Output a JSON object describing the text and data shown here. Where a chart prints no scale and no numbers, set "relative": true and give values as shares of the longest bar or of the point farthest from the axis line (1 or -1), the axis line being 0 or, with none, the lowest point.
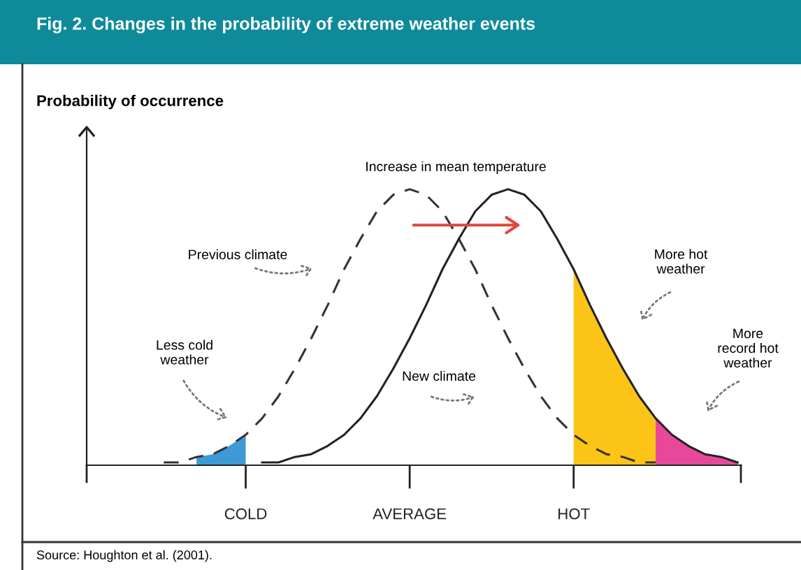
{
  "chart_data": {
    "type": "line",
    "title": "Fig. 2. Changes in the probability of extreme weather events",
    "relative": true,
    "categories": [
      null,
      null,
      null,
      null,
      null,
      null,
      null,
      null,
      null,
      "COLD",
      null,
      null,
      null,
      null,
      null,
      null,
      null,
      null,
      null,
      "AVERAGE",
      null,
      null,
      null,
      null,
      null,
      null,
      null,
      null,
      null,
      "HOT",
      null,
      null,
      null,
      null,
      null,
      null,
      null,
      null,
      null,
      null
    ],
    "grid": false,
    "legend": false,
    "series": [
      {
        "type": "area",
        "color": "#3d9ad6",
        "values": [
          null,
          null,
          null,
          null,
          null,
          null,
          0.03,
          0.04,
          0.07,
          0.11,
          null,
          null,
          null,
          null,
          null,
          null,
          null,
          null,
          null,
          null,
          null,
          null,
          null,
          null,
          null,
          null,
          null,
          null,
          null,
          null,
          null,
          null,
          null,
          null,
          null,
          null,
          null,
          null,
          null,
          null
        ]
      },
      {
        "type": "area",
        "color": "#fbc417",
        "values": [
          null,
          null,
          null,
          null,
          null,
          null,
          null,
          null,
          null,
          null,
          null,
          null,
          null,
          null,
          null,
          null,
          null,
          null,
          null,
          null,
          null,
          null,
          null,
          null,
          null,
          null,
          null,
          null,
          null,
          0.71,
          0.58,
          0.46,
          0.35,
          0.25,
          0.17,
          null,
          null,
          null,
          null,
          null
        ]
      },
      {
        "type": "area",
        "color": "#e8489a",
        "values": [
          null,
          null,
          null,
          null,
          null,
          null,
          null,
          null,
          null,
          null,
          null,
          null,
          null,
          null,
          null,
          null,
          null,
          null,
          null,
          null,
          null,
          null,
          null,
          null,
          null,
          null,
          null,
          null,
          null,
          null,
          null,
          null,
          null,
          null,
          0.17,
          0.11,
          0.07,
          0.04,
          0.03,
          0.01
        ]
      },
      {
        "color": "#333333",
        "line_style": "dashed",
        "values": [
          null,
          null,
          null,
          null,
          0.01,
          0.01,
          0.03,
          0.04,
          0.07,
          0.11,
          0.17,
          0.25,
          0.35,
          0.46,
          0.58,
          0.71,
          0.82,
          0.92,
          0.98,
          1,
          0.98,
          0.92,
          0.82,
          0.71,
          0.58,
          0.46,
          0.35,
          0.25,
          0.17,
          0.11,
          0.07,
          0.04,
          0.03,
          0.01,
          0.01,
          null,
          null,
          null,
          null,
          null
        ]
      },
      {
        "color": "#222222",
        "line_style": "solid",
        "values": [
          null,
          null,
          null,
          null,
          null,
          null,
          null,
          null,
          null,
          null,
          0.01,
          0.01,
          0.03,
          0.04,
          0.07,
          0.11,
          0.17,
          0.25,
          0.35,
          0.46,
          0.58,
          0.71,
          0.82,
          0.92,
          0.98,
          1,
          0.98,
          0.92,
          0.82,
          0.71,
          0.58,
          0.46,
          0.35,
          0.25,
          0.17,
          0.11,
          0.07,
          0.04,
          0.03,
          0.01
        ]
      }
    ],
    "annotations": [
      "Increase in mean temperature",
      "Previous climate",
      "New climate",
      "Less cold\nweather",
      "More hot\nweather",
      "More\nrecord hot\nweather",
      "Source: Houghton et al. (2001).",
      "Probability of occurrence"
    ]
  }
}
